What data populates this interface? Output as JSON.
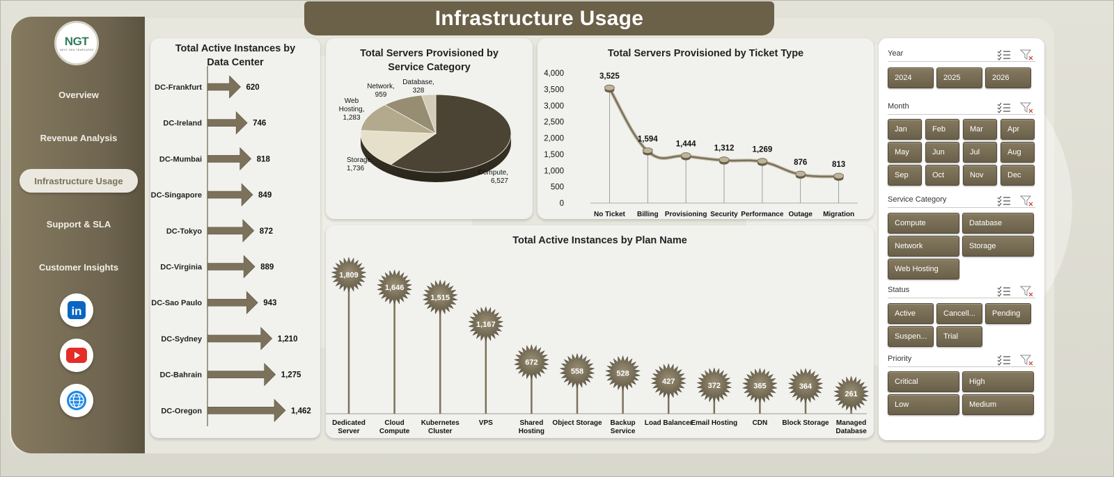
{
  "header": {
    "title": "Infrastructure Usage"
  },
  "logo": {
    "text": "NGT",
    "subtext": "NEXT GEN TEMPLATES"
  },
  "sidebar": {
    "items": [
      {
        "label": "Overview",
        "active": false
      },
      {
        "label": "Revenue Analysis",
        "active": false
      },
      {
        "label": "Infrastructure Usage",
        "active": true
      },
      {
        "label": "Support & SLA",
        "active": false
      },
      {
        "label": "Customer Insights",
        "active": false
      }
    ],
    "social": [
      {
        "icon": "linkedin-icon",
        "text": "in",
        "color": "#0a66c2"
      },
      {
        "icon": "youtube-icon",
        "color": "#e52d27"
      },
      {
        "icon": "globe-icon",
        "color": "#1e88e5"
      }
    ]
  },
  "chart_data": [
    {
      "id": "dc-chart",
      "type": "bar",
      "orientation": "horizontal",
      "title": "Total Active Instances by Data Center",
      "categories": [
        "DC-Frankfurt",
        "DC-Ireland",
        "DC-Mumbai",
        "DC-Singapore",
        "DC-Tokyo",
        "DC-Virginia",
        "DC-Sao Paulo",
        "DC-Sydney",
        "DC-Bahrain",
        "DC-Oregon"
      ],
      "values": [
        620,
        746,
        818,
        849,
        872,
        889,
        943,
        1210,
        1275,
        1462
      ],
      "value_labels": [
        "620",
        "746",
        "818",
        "849",
        "872",
        "889",
        "943",
        "1,210",
        "1,275",
        "1,462"
      ],
      "mark": "arrow",
      "color": "#7c715a"
    },
    {
      "id": "pie-chart",
      "type": "pie",
      "title": "Total Servers Provisioned by Service Category",
      "categories": [
        "Compute",
        "Storage",
        "Web Hosting",
        "Network",
        "Database"
      ],
      "values": [
        6527,
        1736,
        1283,
        959,
        328
      ],
      "labels": [
        [
          "Compute,",
          "6,527"
        ],
        [
          "Storage,",
          "1,736"
        ],
        [
          "Web",
          "Hosting,",
          "1,283"
        ],
        [
          "Network,",
          "959"
        ],
        [
          "Database,",
          "328"
        ]
      ],
      "colors": [
        "#4b4333",
        "#e6e0cb",
        "#b3a98c",
        "#978d72",
        "#d2ccb9"
      ]
    },
    {
      "id": "ticket-chart",
      "type": "line",
      "title": "Total Servers Provisioned by Ticket Type",
      "categories": [
        "No Ticket",
        "Billing",
        "Provisioning",
        "Security",
        "Performance",
        "Outage",
        "Migration"
      ],
      "values": [
        3525,
        1594,
        1444,
        1312,
        1269,
        876,
        813
      ],
      "value_labels": [
        "3,525",
        "1,594",
        "1,444",
        "1,312",
        "1,269",
        "876",
        "813"
      ],
      "ylim": [
        0,
        4000
      ],
      "yticks": [
        "0",
        "500",
        "1,000",
        "1,500",
        "2,000",
        "2,500",
        "3,000",
        "3,500",
        "4,000"
      ],
      "ytick_values": [
        0,
        500,
        1000,
        1500,
        2000,
        2500,
        3000,
        3500,
        4000
      ],
      "smooth": true,
      "color": "#7c715a"
    },
    {
      "id": "plan-chart",
      "type": "bar",
      "mark": "lollipop-burst",
      "title": "Total Active Instances by Plan Name",
      "categories": [
        [
          "Dedicated",
          "Server"
        ],
        [
          "Cloud",
          "Compute"
        ],
        [
          "Kubernetes",
          "Cluster"
        ],
        [
          "VPS"
        ],
        [
          "Shared",
          "Hosting"
        ],
        [
          "Object Storage"
        ],
        [
          "Backup",
          "Service"
        ],
        [
          "Load Balancer"
        ],
        [
          "Email Hosting"
        ],
        [
          "CDN"
        ],
        [
          "Block Storage"
        ],
        [
          "Managed",
          "Database"
        ]
      ],
      "values": [
        1809,
        1646,
        1515,
        1167,
        672,
        558,
        528,
        427,
        372,
        365,
        364,
        261
      ],
      "value_labels": [
        "1,809",
        "1,646",
        "1,515",
        "1,167",
        "672",
        "558",
        "528",
        "427",
        "372",
        "365",
        "364",
        "261"
      ],
      "color": "#7c715a"
    }
  ],
  "slicers": [
    {
      "label": "Year",
      "buttons": [
        "2024",
        "2025",
        "2026"
      ]
    },
    {
      "label": "Month",
      "buttons": [
        "Jan",
        "Feb",
        "Mar",
        "Apr",
        "May",
        "Jun",
        "Jul",
        "Aug",
        "Sep",
        "Oct",
        "Nov",
        "Dec"
      ]
    },
    {
      "label": "Service Category",
      "buttons": [
        "Compute",
        "Database",
        "Network",
        "Storage",
        "Web Hosting"
      ]
    },
    {
      "label": "Status",
      "buttons": [
        "Active",
        "Cancell...",
        "Pending",
        "Suspen...",
        "Trial"
      ]
    },
    {
      "label": "Priority",
      "buttons": [
        "Critical",
        "High",
        "Low",
        "Medium"
      ]
    }
  ]
}
